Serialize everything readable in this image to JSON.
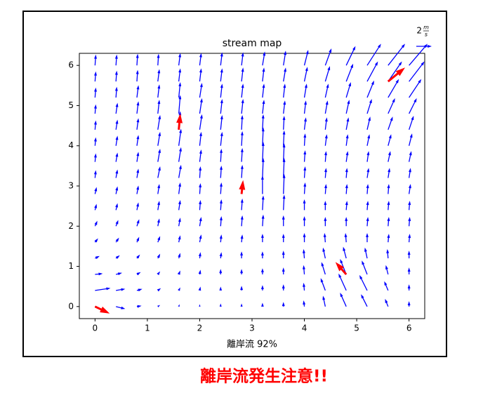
{
  "chart_data": {
    "type": "quiver",
    "title": "stream map",
    "xlabel": "離岸流 92%",
    "x": [
      0,
      0.4,
      0.8,
      1.2,
      1.6,
      2.0,
      2.4,
      2.8,
      3.2,
      3.6,
      4.0,
      4.4,
      4.8,
      5.2,
      5.6,
      6.0
    ],
    "y": [
      0,
      0.4,
      0.8,
      1.2,
      1.6,
      2.0,
      2.4,
      2.8,
      3.2,
      3.6,
      4.0,
      4.4,
      4.8,
      5.2,
      5.6,
      6.0
    ],
    "u": [
      [
        1.6,
        1.2,
        0.6,
        0.3,
        0.1,
        0,
        0,
        0,
        0,
        0,
        -0.1,
        -0.3,
        -0.8,
        -0.8,
        -0.4,
        0
      ],
      [
        2.0,
        1.2,
        0.7,
        0.4,
        0.2,
        0.1,
        0,
        0,
        0,
        0,
        -0.1,
        -0.6,
        -1.0,
        -1.0,
        -0.5,
        0
      ],
      [
        1.0,
        0.8,
        0.5,
        0.3,
        0.2,
        0.1,
        0,
        0,
        0,
        0,
        -0.1,
        -0.5,
        -0.8,
        -0.7,
        -0.3,
        0
      ],
      [
        0.6,
        0.5,
        0.4,
        0.3,
        0.2,
        0.1,
        0.1,
        0,
        0,
        0,
        -0.1,
        -0.3,
        -0.4,
        -0.3,
        -0.1,
        0
      ],
      [
        0.4,
        0.4,
        0.3,
        0.3,
        0.2,
        0.2,
        0.1,
        0.1,
        0,
        0,
        0,
        -0.1,
        -0.1,
        0,
        0.1,
        0.1
      ],
      [
        0.3,
        0.3,
        0.3,
        0.2,
        0.2,
        0.2,
        0.1,
        0.1,
        0.1,
        0,
        0,
        0,
        0,
        0.1,
        0.1,
        0.1
      ],
      [
        0.2,
        0.2,
        0.2,
        0.2,
        0.2,
        0.1,
        0.1,
        0.1,
        0.1,
        0.1,
        0,
        0,
        0.1,
        0.1,
        0.1,
        0.1
      ],
      [
        0.2,
        0.2,
        0.2,
        0.2,
        0.2,
        0.1,
        0.1,
        0.1,
        0,
        0.1,
        0.1,
        0.1,
        0.1,
        0.1,
        0.1,
        0.2
      ],
      [
        0.1,
        0.2,
        0.2,
        0.3,
        0.3,
        0.1,
        0.1,
        0.1,
        0.1,
        0.1,
        0.1,
        0.1,
        0.1,
        0.2,
        0.2,
        0.2
      ],
      [
        0.1,
        0.2,
        0.2,
        0.3,
        0.3,
        0.2,
        0.1,
        0.1,
        0.1,
        0.1,
        0.1,
        0.1,
        0.2,
        0.2,
        0.3,
        0.3
      ],
      [
        0.1,
        0.2,
        0.2,
        0.3,
        0.3,
        0.2,
        0.2,
        0.1,
        0.1,
        0.1,
        0.1,
        0.2,
        0.2,
        0.3,
        0.4,
        0.4
      ],
      [
        0.1,
        0.2,
        0.2,
        0.3,
        0.2,
        0.3,
        0.2,
        0.1,
        0.1,
        0.1,
        0.2,
        0.2,
        0.3,
        0.4,
        0.6,
        0.6
      ],
      [
        0.1,
        0.2,
        0.2,
        0.2,
        0.2,
        0.3,
        0.2,
        0.2,
        0.2,
        0.2,
        0.2,
        0.3,
        0.4,
        0.6,
        0.9,
        1.0
      ],
      [
        0.1,
        0.1,
        0.2,
        0.2,
        0.2,
        0.3,
        0.2,
        0.2,
        0.2,
        0.2,
        0.3,
        0.4,
        0.6,
        0.9,
        1.4,
        1.6
      ],
      [
        0.1,
        0.1,
        0.1,
        0.2,
        0.2,
        0.2,
        0.2,
        0.2,
        0.2,
        0.3,
        0.4,
        0.6,
        0.9,
        1.4,
        1.8,
        2.0
      ],
      [
        0.1,
        0.1,
        0.1,
        0.1,
        0.2,
        0.2,
        0.2,
        0.2,
        0.3,
        0.3,
        0.5,
        0.8,
        1.2,
        1.8,
        2.2,
        2.4
      ]
    ],
    "v": [
      [
        -0.8,
        -0.3,
        0.1,
        0.2,
        0.3,
        0.3,
        0.4,
        0.4,
        0.5,
        0.6,
        0.8,
        1.4,
        1.8,
        1.6,
        1.0,
        0.7
      ],
      [
        0.3,
        0.2,
        0.2,
        0.3,
        0.4,
        0.5,
        0.5,
        0.6,
        0.7,
        0.8,
        1.0,
        1.6,
        2.2,
        2.0,
        1.2,
        0.8
      ],
      [
        0.1,
        0.2,
        0.3,
        0.4,
        0.5,
        0.6,
        0.7,
        0.7,
        0.8,
        0.9,
        1.2,
        1.6,
        2.0,
        1.8,
        1.2,
        0.9
      ],
      [
        0.3,
        0.4,
        0.5,
        0.6,
        0.7,
        0.8,
        0.8,
        0.9,
        0.9,
        1.0,
        1.2,
        1.4,
        1.5,
        1.4,
        1.2,
        1.0
      ],
      [
        0.5,
        0.6,
        0.7,
        0.8,
        0.9,
        1.0,
        1.0,
        1.0,
        1.1,
        1.1,
        1.2,
        1.2,
        1.2,
        1.2,
        1.1,
        1.1
      ],
      [
        0.7,
        0.8,
        0.9,
        1.0,
        1.1,
        1.2,
        1.3,
        1.4,
        1.5,
        1.4,
        1.3,
        1.2,
        1.2,
        1.2,
        1.2,
        1.2
      ],
      [
        0.8,
        0.9,
        1.0,
        1.2,
        1.3,
        1.3,
        1.4,
        1.5,
        1.9,
        2.0,
        1.4,
        1.2,
        1.2,
        1.2,
        1.2,
        1.2
      ],
      [
        0.9,
        1.0,
        1.1,
        1.3,
        1.5,
        1.4,
        1.5,
        1.6,
        2.4,
        2.6,
        1.5,
        1.3,
        1.3,
        1.3,
        1.3,
        1.3
      ],
      [
        1.0,
        1.1,
        1.2,
        1.5,
        1.7,
        1.5,
        1.6,
        1.7,
        2.6,
        2.6,
        1.5,
        1.3,
        1.3,
        1.3,
        1.3,
        1.3
      ],
      [
        1.1,
        1.2,
        1.3,
        1.7,
        1.9,
        1.6,
        1.7,
        1.8,
        2.6,
        2.4,
        1.5,
        1.4,
        1.4,
        1.4,
        1.4,
        1.4
      ],
      [
        1.1,
        1.3,
        1.4,
        1.8,
        2.2,
        1.8,
        1.8,
        1.9,
        2.4,
        2.0,
        1.6,
        1.5,
        1.5,
        1.5,
        1.5,
        1.6
      ],
      [
        1.2,
        1.3,
        1.5,
        1.9,
        2.4,
        2.0,
        1.9,
        1.9,
        2.0,
        1.8,
        1.6,
        1.6,
        1.6,
        1.7,
        1.7,
        1.8
      ],
      [
        1.2,
        1.4,
        1.6,
        1.8,
        2.4,
        2.0,
        1.9,
        1.9,
        1.8,
        1.7,
        1.7,
        1.7,
        1.8,
        1.9,
        2.0,
        2.0
      ],
      [
        1.3,
        1.4,
        1.6,
        1.7,
        2.0,
        1.9,
        1.8,
        1.8,
        1.8,
        1.8,
        1.8,
        1.8,
        2.0,
        2.2,
        2.4,
        2.4
      ],
      [
        1.3,
        1.4,
        1.5,
        1.6,
        1.7,
        1.7,
        1.7,
        1.8,
        1.8,
        1.8,
        1.9,
        2.0,
        2.3,
        2.6,
        2.6,
        2.6
      ],
      [
        1.4,
        1.4,
        1.5,
        1.5,
        1.6,
        1.6,
        1.7,
        1.7,
        1.8,
        1.9,
        2.0,
        2.2,
        2.5,
        2.8,
        2.8,
        2.8
      ]
    ],
    "color": "#0000ff",
    "highlights": {
      "x": [
        0,
        1.6,
        2.8,
        4.8,
        5.6
      ],
      "y": [
        0,
        4.4,
        2.8,
        0.8,
        5.6
      ],
      "u": [
        1.9,
        0.2,
        0.2,
        -1.4,
        2.2
      ],
      "v": [
        -0.9,
        2.1,
        1.8,
        1.6,
        1.8
      ],
      "color": "#ff0000"
    },
    "xlim": [
      -0.3,
      6.3
    ],
    "ylim": [
      -0.3,
      6.3
    ],
    "xticks": [
      0,
      1,
      2,
      3,
      4,
      5,
      6
    ],
    "yticks": [
      0,
      1,
      2,
      3,
      4,
      5,
      6
    ],
    "key": {
      "value": 2,
      "numerator": "m",
      "denominator": "s"
    }
  },
  "alert": "離岸流発生注意!!"
}
